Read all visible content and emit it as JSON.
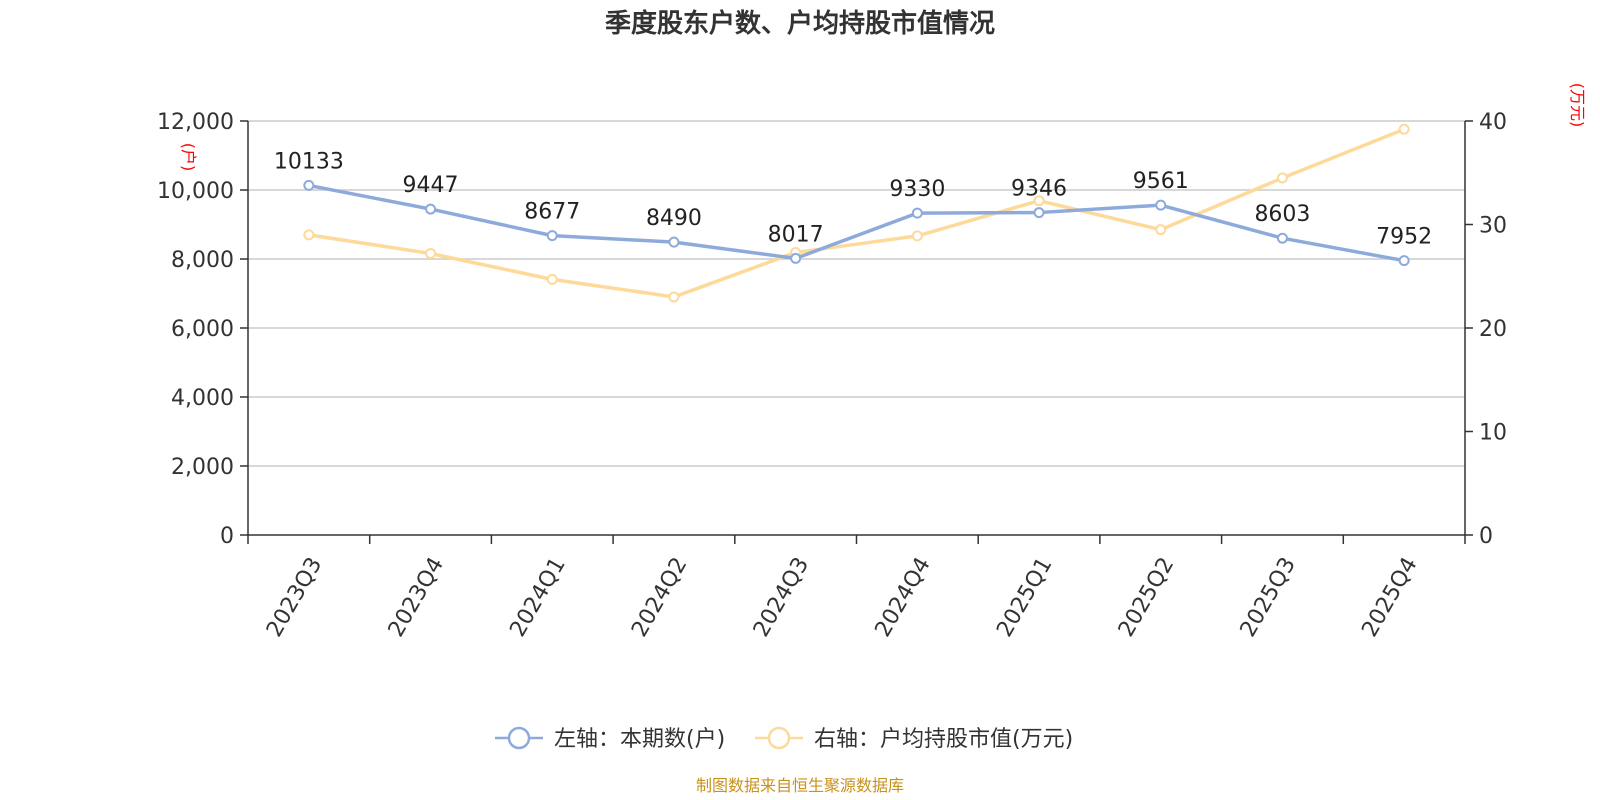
{
  "chart_data": {
    "type": "line",
    "title": "季度股东户数、户均持股市值情况",
    "categories": [
      "2023Q3",
      "2023Q4",
      "2024Q1",
      "2024Q2",
      "2024Q3",
      "2024Q4",
      "2025Q1",
      "2025Q2",
      "2025Q3",
      "2025Q4"
    ],
    "left_axis": {
      "unit": "(户)",
      "ylim": [
        0,
        12000
      ],
      "ticks": [
        "0",
        "2,000",
        "4,000",
        "6,000",
        "8,000",
        "10,000",
        "12,000"
      ],
      "tick_values": [
        0,
        2000,
        4000,
        6000,
        8000,
        10000,
        12000
      ]
    },
    "right_axis": {
      "unit": "(万元)",
      "ylim": [
        0,
        40
      ],
      "ticks": [
        "0",
        "10",
        "20",
        "30",
        "40"
      ],
      "tick_values": [
        0,
        10,
        20,
        30,
        40
      ]
    },
    "series": [
      {
        "name": "左轴：本期数(户)",
        "axis": "left",
        "color": "#8eaadb",
        "values": [
          10133,
          9447,
          8677,
          8490,
          8017,
          9330,
          9346,
          9561,
          8603,
          7952
        ],
        "labels": [
          "10133",
          "9447",
          "8677",
          "8490",
          "8017",
          "9330",
          "9346",
          "9561",
          "8603",
          "7952"
        ]
      },
      {
        "name": "右轴：户均持股市值(万元)",
        "axis": "right",
        "color": "#fdd99a",
        "values": [
          29.0,
          27.2,
          24.7,
          23.0,
          27.3,
          28.9,
          32.3,
          29.5,
          34.5,
          39.2
        ]
      }
    ],
    "grid": true,
    "legend_position": "bottom"
  },
  "source": "制图数据来自恒生聚源数据库"
}
